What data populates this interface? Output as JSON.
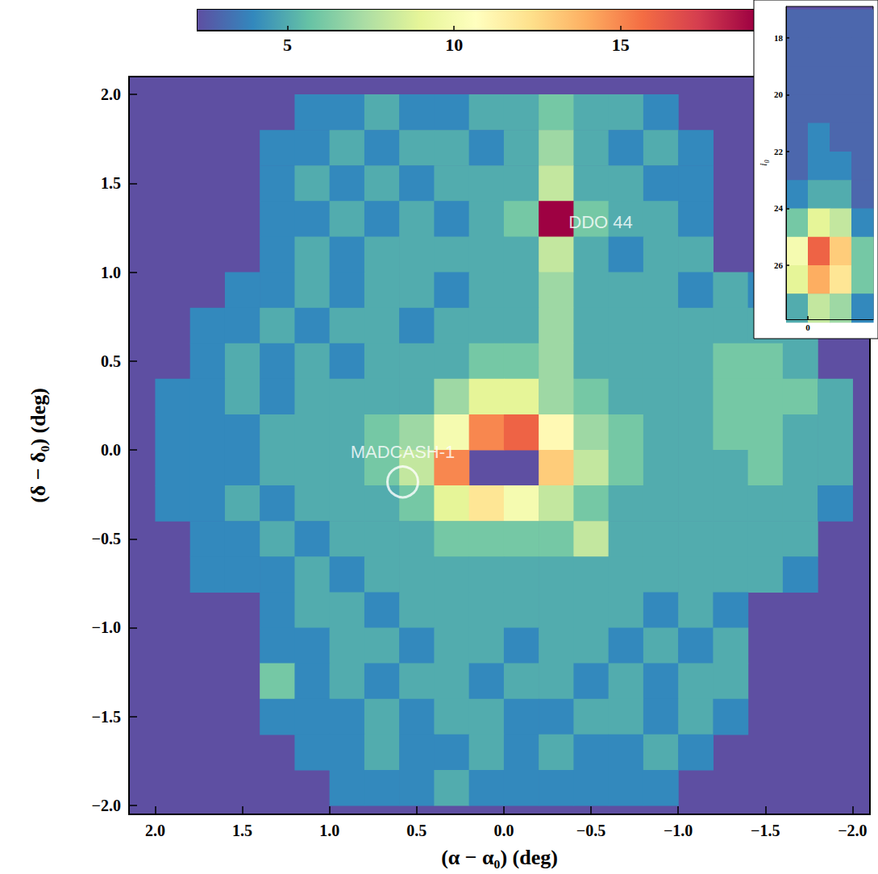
{
  "chart_data": [
    {
      "type": "heatmap",
      "x_label": "(α − α₀) (deg)",
      "y_label": "(δ − δ₀) (deg)",
      "xlim": [
        2.15,
        -2.1
      ],
      "ylim": [
        -2.05,
        2.1
      ],
      "xticks": [
        {
          "value": 2.0,
          "label": "2.0"
        },
        {
          "value": 1.5,
          "label": "1.5"
        },
        {
          "value": 1.0,
          "label": "1.0"
        },
        {
          "value": 0.5,
          "label": "0.5"
        },
        {
          "value": 0.0,
          "label": "0.0"
        },
        {
          "value": -0.5,
          "label": "−0.5"
        },
        {
          "value": -1.0,
          "label": "−1.0"
        },
        {
          "value": -1.5,
          "label": "−1.5"
        },
        {
          "value": -2.0,
          "label": "−2.0"
        }
      ],
      "yticks": [
        {
          "value": 2.0,
          "label": "2.0"
        },
        {
          "value": 1.5,
          "label": "1.5"
        },
        {
          "value": 1.0,
          "label": "1.0"
        },
        {
          "value": 0.5,
          "label": "0.5"
        },
        {
          "value": 0.0,
          "label": "0.0"
        },
        {
          "value": -0.5,
          "label": "−0.5"
        },
        {
          "value": -1.0,
          "label": "−1.0"
        },
        {
          "value": -1.5,
          "label": "−1.5"
        },
        {
          "value": -2.0,
          "label": "−2.0"
        }
      ],
      "x": [
        1.9,
        1.7,
        1.5,
        1.3,
        1.1,
        0.9,
        0.7,
        0.5,
        0.3,
        0.1,
        -0.1,
        -0.3,
        -0.5,
        -0.7,
        -0.9,
        -1.1,
        -1.3,
        -1.5,
        -1.7,
        -1.9
      ],
      "y": [
        1.9,
        1.7,
        1.5,
        1.3,
        1.1,
        0.9,
        0.7,
        0.5,
        0.3,
        0.1,
        -0.1,
        -0.3,
        -0.5,
        -0.7,
        -0.9,
        -1.1,
        -1.3,
        -1.5,
        -1.7,
        -1.9
      ],
      "values": [
        [
          null,
          null,
          null,
          null,
          4,
          4,
          5,
          4,
          4,
          5,
          5,
          6,
          5,
          5,
          4,
          null,
          null,
          null,
          null,
          null
        ],
        [
          null,
          null,
          null,
          4,
          4,
          5,
          4,
          5,
          5,
          4,
          5,
          7,
          5,
          4,
          5,
          4,
          null,
          null,
          null,
          null
        ],
        [
          null,
          null,
          null,
          4,
          5,
          4,
          5,
          4,
          5,
          5,
          5,
          8,
          5,
          5,
          4,
          4,
          null,
          null,
          null,
          null
        ],
        [
          null,
          null,
          null,
          4,
          4,
          5,
          4,
          5,
          4,
          5,
          6,
          19,
          6,
          5,
          5,
          4,
          null,
          null,
          null,
          null
        ],
        [
          null,
          null,
          null,
          4,
          5,
          4,
          5,
          5,
          5,
          5,
          5,
          8,
          5,
          4,
          5,
          5,
          null,
          null,
          null,
          null
        ],
        [
          null,
          null,
          4,
          4,
          5,
          4,
          5,
          5,
          4,
          5,
          5,
          7,
          5,
          5,
          5,
          4,
          5,
          4,
          null,
          null
        ],
        [
          null,
          4,
          4,
          5,
          4,
          5,
          5,
          4,
          5,
          5,
          5,
          7,
          5,
          5,
          5,
          5,
          5,
          5,
          5,
          null
        ],
        [
          null,
          4,
          5,
          4,
          5,
          4,
          5,
          5,
          5,
          6,
          6,
          7,
          5,
          5,
          5,
          5,
          6,
          6,
          5,
          null
        ],
        [
          4,
          4,
          5,
          4,
          5,
          5,
          5,
          5,
          7,
          9,
          9,
          7,
          6,
          5,
          5,
          5,
          6,
          6,
          6,
          5
        ],
        [
          4,
          4,
          4,
          5,
          5,
          5,
          6,
          7,
          10,
          15,
          16,
          11,
          7,
          6,
          5,
          5,
          6,
          6,
          5,
          5
        ],
        [
          4,
          4,
          4,
          5,
          5,
          5,
          6,
          8,
          15,
          null,
          null,
          13,
          8,
          6,
          5,
          5,
          5,
          6,
          5,
          5
        ],
        [
          4,
          4,
          5,
          4,
          5,
          5,
          5,
          6,
          9,
          12,
          10,
          8,
          6,
          5,
          5,
          5,
          5,
          5,
          5,
          4
        ],
        [
          null,
          4,
          4,
          5,
          4,
          5,
          5,
          5,
          6,
          6,
          6,
          6,
          8,
          5,
          5,
          5,
          5,
          5,
          5,
          null
        ],
        [
          null,
          4,
          4,
          4,
          5,
          4,
          5,
          5,
          5,
          5,
          5,
          5,
          5,
          5,
          5,
          5,
          5,
          5,
          4,
          null
        ],
        [
          null,
          null,
          null,
          4,
          5,
          5,
          4,
          5,
          5,
          5,
          5,
          5,
          5,
          5,
          4,
          5,
          4,
          null,
          null,
          null
        ],
        [
          null,
          null,
          null,
          4,
          4,
          5,
          5,
          4,
          5,
          5,
          4,
          5,
          5,
          4,
          5,
          4,
          5,
          null,
          null,
          null
        ],
        [
          null,
          null,
          null,
          6,
          4,
          5,
          4,
          5,
          5,
          4,
          5,
          5,
          4,
          5,
          4,
          5,
          5,
          null,
          null,
          null
        ],
        [
          null,
          null,
          null,
          4,
          4,
          4,
          5,
          4,
          5,
          5,
          4,
          4,
          5,
          5,
          4,
          5,
          4,
          null,
          null,
          null
        ],
        [
          null,
          null,
          null,
          null,
          4,
          4,
          5,
          4,
          4,
          5,
          4,
          5,
          4,
          4,
          5,
          4,
          null,
          null,
          null,
          null
        ],
        [
          null,
          null,
          null,
          null,
          null,
          4,
          4,
          4,
          5,
          4,
          4,
          4,
          4,
          4,
          4,
          null,
          null,
          null,
          null,
          null
        ]
      ],
      "colorbar": {
        "range": [
          2.3,
          19
        ],
        "ticks": [
          5,
          10,
          15
        ]
      },
      "annotations": [
        {
          "text": "DDO 44",
          "x": -0.27,
          "y": 1.28
        },
        {
          "text": "MADCASH-1",
          "x": 0.58,
          "y": -0.18,
          "marker": "circle"
        }
      ]
    },
    {
      "type": "heatmap",
      "y_label": "i₀",
      "xlim": [
        -0.5,
        1.5
      ],
      "ylim": [
        27.9,
        16.9
      ],
      "xticks": [
        0
      ],
      "yticks": [
        18,
        20,
        22,
        24,
        26
      ],
      "x": [
        -0.25,
        0.25,
        0.75,
        1.25
      ],
      "y": [
        17.5,
        18.5,
        19.5,
        20.5,
        21.5,
        22.5,
        23.5,
        24.5,
        25.5,
        26.5,
        27.5
      ],
      "values": [
        [
          3,
          3,
          3,
          3
        ],
        [
          3,
          3,
          3,
          3
        ],
        [
          3,
          3,
          3,
          3
        ],
        [
          3,
          3,
          3,
          3
        ],
        [
          3,
          4,
          3,
          3
        ],
        [
          3,
          4,
          4,
          3
        ],
        [
          4,
          5,
          5,
          3
        ],
        [
          6,
          9,
          8,
          4
        ],
        [
          10,
          16,
          13,
          6
        ],
        [
          9,
          14,
          12,
          6
        ],
        [
          5,
          8,
          7,
          4
        ]
      ]
    }
  ]
}
